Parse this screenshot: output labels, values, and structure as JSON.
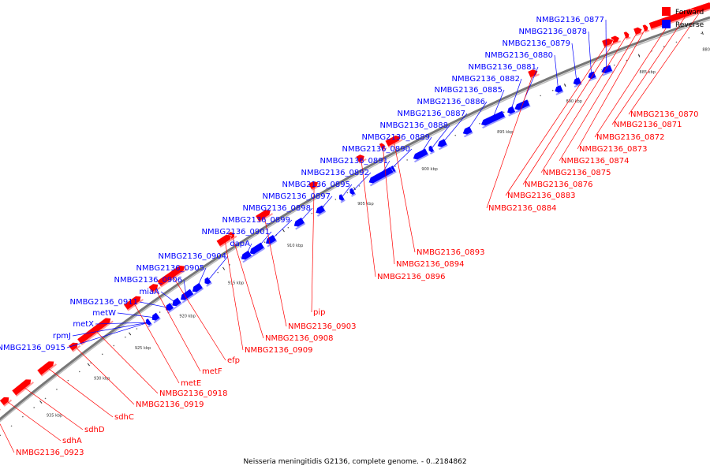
{
  "caption": "Neisseria meningitidis G2136, complete genome. - 0..2184862",
  "legend": [
    {
      "label": "Forward",
      "color": "#ff0000"
    },
    {
      "label": "Reverse",
      "color": "#0000ff"
    }
  ],
  "colors": {
    "forward": "#ff0000",
    "reverse": "#0000ff",
    "backbone": "#888888"
  },
  "ticks": [
    "880 kbp",
    "885 kbp",
    "890 kbp",
    "895 kbp",
    "900 kbp",
    "905 kbp",
    "910 kbp",
    "915 kbp",
    "920 kbp",
    "925 kbp",
    "930 kbp",
    "935 kbp"
  ],
  "reverse_labels": [
    "NMBG2136_0877",
    "NMBG2136_0878",
    "NMBG2136_0879",
    "NMBG2136_0880",
    "NMBG2136_0881",
    "NMBG2136_0882",
    "NMBG2136_0885",
    "NMBG2136_0886",
    "NMBG2136_0887",
    "NMBG2136_0888",
    "NMBG2136_0889",
    "NMBG2136_0890",
    "NMBG2136_0891",
    "NMBG2136_0892",
    "NMBG2136_0895",
    "NMBG2136_0897",
    "NMBG2136_0898",
    "NMBG2136_0899",
    "NMBG2136_0901",
    "dapA",
    "NMBG2136_0904",
    "NMBG2136_0905",
    "NMBG2136_0906",
    "miaA",
    "NMBG2136_0911",
    "metW",
    "metX",
    "rpmJ",
    "NMBG2136_0915"
  ],
  "forward_labels": [
    "NMBG2136_0870",
    "NMBG2136_0871",
    "NMBG2136_0872",
    "NMBG2136_0873",
    "NMBG2136_0874",
    "NMBG2136_0875",
    "NMBG2136_0876",
    "NMBG2136_0883",
    "NMBG2136_0884",
    "NMBG2136_0893",
    "NMBG2136_0894",
    "NMBG2136_0896",
    "pip",
    "NMBG2136_0903",
    "NMBG2136_0908",
    "NMBG2136_0909",
    "efp",
    "metF",
    "metE",
    "NMBG2136_0918",
    "NMBG2136_0919",
    "sdhC",
    "sdhD",
    "sdhA",
    "NMBG2136_0923"
  ]
}
